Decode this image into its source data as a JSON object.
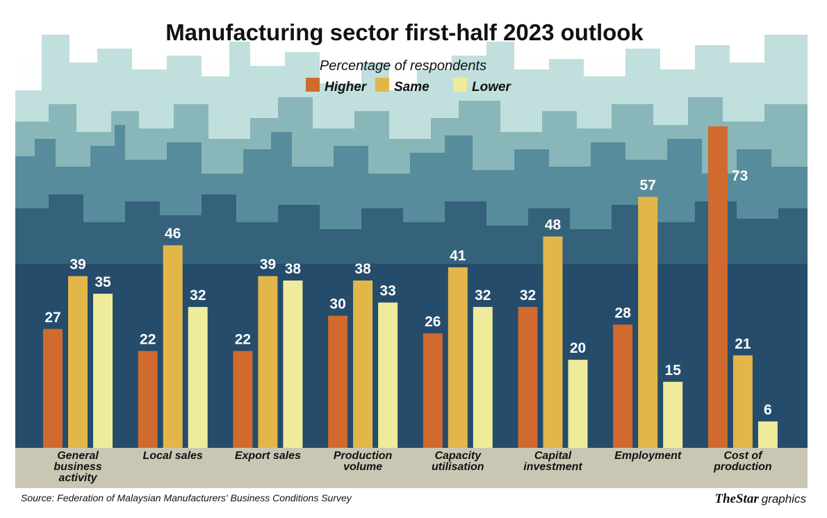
{
  "chart_data": {
    "type": "bar",
    "title": "Manufacturing sector first-half 2023 outlook",
    "subtitle": "Percentage of respondents",
    "categories": [
      [
        "General",
        "business",
        "activity"
      ],
      [
        "Local sales"
      ],
      [
        "Export sales"
      ],
      [
        "Production",
        "volume"
      ],
      [
        "Capacity",
        "utilisation"
      ],
      [
        "Capital",
        "investment"
      ],
      [
        "Employment"
      ],
      [
        "Cost of",
        "production"
      ]
    ],
    "series": [
      {
        "name": "Higher",
        "color": "#d06a2e",
        "values": [
          27,
          22,
          22,
          30,
          26,
          32,
          28,
          73
        ]
      },
      {
        "name": "Same",
        "color": "#e3b64a",
        "values": [
          39,
          46,
          39,
          38,
          41,
          48,
          57,
          21
        ]
      },
      {
        "name": "Lower",
        "color": "#eeeb9a",
        "values": [
          35,
          32,
          38,
          33,
          32,
          20,
          15,
          6
        ]
      }
    ],
    "ylim": [
      0,
      73
    ],
    "legend_position": "top-center",
    "grid": false,
    "source": "Source: Federation of Malaysian Manufacturers' Business Conditions Survey",
    "brand": {
      "the": "The",
      "star": "Star",
      "graphics": "graphics"
    }
  }
}
